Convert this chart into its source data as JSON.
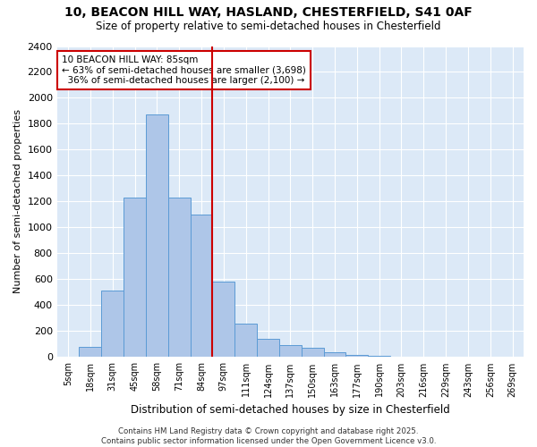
{
  "title_line1": "10, BEACON HILL WAY, HASLAND, CHESTERFIELD, S41 0AF",
  "title_line2": "Size of property relative to semi-detached houses in Chesterfield",
  "xlabel": "Distribution of semi-detached houses by size in Chesterfield",
  "ylabel": "Number of semi-detached properties",
  "footer": "Contains HM Land Registry data © Crown copyright and database right 2025.\nContains public sector information licensed under the Open Government Licence v3.0.",
  "bin_labels": [
    "5sqm",
    "18sqm",
    "31sqm",
    "45sqm",
    "58sqm",
    "71sqm",
    "84sqm",
    "97sqm",
    "111sqm",
    "124sqm",
    "137sqm",
    "150sqm",
    "163sqm",
    "177sqm",
    "190sqm",
    "203sqm",
    "216sqm",
    "229sqm",
    "243sqm",
    "256sqm",
    "269sqm"
  ],
  "bar_values": [
    5,
    80,
    510,
    1230,
    1870,
    1230,
    1100,
    580,
    260,
    140,
    90,
    70,
    35,
    20,
    10,
    5,
    3,
    2,
    1,
    0,
    0
  ],
  "bar_color": "#aec6e8",
  "bar_edge_color": "#5b9bd5",
  "property_label": "10 BEACON HILL WAY: 85sqm",
  "pct_smaller": 63,
  "pct_larger": 36,
  "count_smaller": 3698,
  "count_larger": 2100,
  "vline_color": "#cc0000",
  "annotation_box_color": "#cc0000",
  "ylim": [
    0,
    2400
  ],
  "yticks": [
    0,
    200,
    400,
    600,
    800,
    1000,
    1200,
    1400,
    1600,
    1800,
    2000,
    2200,
    2400
  ],
  "bg_color": "#dce9f7",
  "grid_color": "#ffffff",
  "vline_bin_index": 5,
  "fig_width": 6.0,
  "fig_height": 5.0,
  "dpi": 100
}
